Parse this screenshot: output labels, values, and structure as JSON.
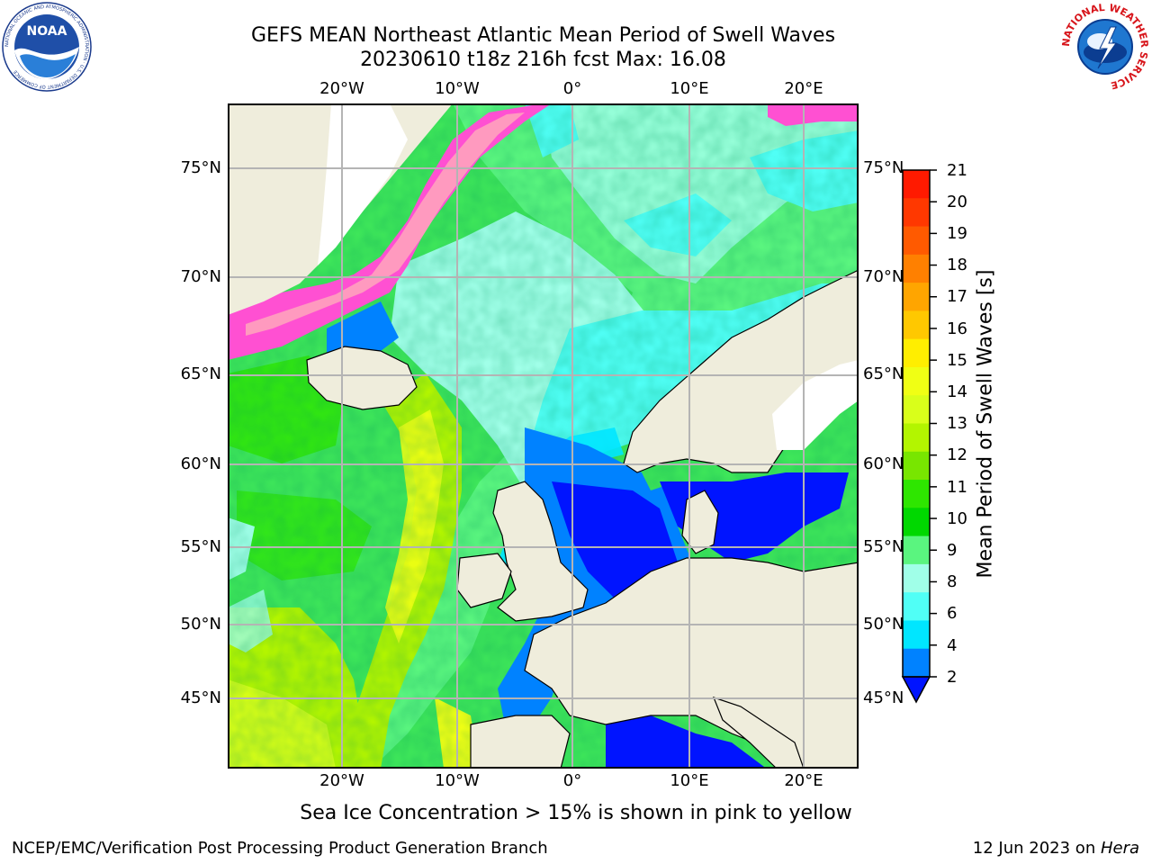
{
  "title": {
    "line1": "GEFS MEAN Northeast Atlantic Mean Period of Swell Waves",
    "line2": "20230610 t18z 216h fcst   Max: 16.08"
  },
  "map": {
    "lon_labels": [
      "20°W",
      "10°W",
      "0°",
      "10°E",
      "20°E"
    ],
    "lat_labels": [
      "75°N",
      "70°N",
      "65°N",
      "60°N",
      "55°N",
      "50°N",
      "45°N"
    ],
    "colors": {
      "land": "#efeddc",
      "ice_free_land": "#ffffff",
      "gridline": "#b4b4b4",
      "coast": "#000000"
    }
  },
  "colorbar": {
    "label": "Mean Period of Swell Waves [s]",
    "ticks": [
      "21",
      "20",
      "19",
      "18",
      "17",
      "16",
      "15",
      "14",
      "13",
      "12",
      "11",
      "10",
      "9",
      "8",
      "6",
      "4",
      "2"
    ],
    "colors_top_to_bottom": [
      "#ff1a00",
      "#ff3800",
      "#ff5a00",
      "#ff8000",
      "#ffa500",
      "#ffc800",
      "#ffee00",
      "#f0ff14",
      "#d9ff1a",
      "#b3f500",
      "#78e600",
      "#2ee600",
      "#00d800",
      "#5af57f",
      "#a0ffe8",
      "#50fff6",
      "#00e6ff",
      "#0082ff"
    ],
    "under_color": "#0014ff"
  },
  "caption": "Sea Ice Concentration > 15% is shown in pink to yellow",
  "footer": {
    "left": "NCEP/EMC/Verification Post Processing Product Generation Branch",
    "right_date": "12 Jun 2023 on ",
    "right_host": "Hera"
  },
  "logos": {
    "noaa_text": "NOAA",
    "noaa_ring": "NATIONAL OCEANIC AND ATMOSPHERIC ADMINISTRATION · U.S. DEPARTMENT OF COMMERCE",
    "nws_ring": "NATIONAL WEATHER SERVICE"
  }
}
